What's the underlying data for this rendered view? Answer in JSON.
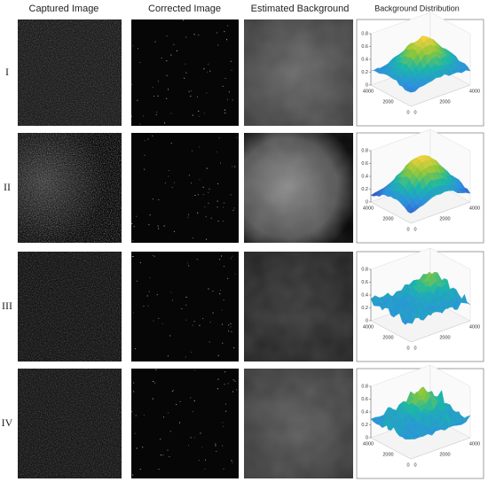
{
  "columns": [
    "Captured Image",
    "Corrected Image",
    "Estimated Background",
    "Background Distribution"
  ],
  "rows": [
    {
      "label": "I",
      "plot": {
        "zticks": [
          0,
          0.2,
          0.4,
          0.6,
          0.8
        ],
        "left_ticks": [
          "4000",
          "2000",
          "0"
        ],
        "right_ticks": [
          "0",
          "2000",
          "4000"
        ]
      }
    },
    {
      "label": "II",
      "plot": {
        "zticks": [
          0,
          0.2,
          0.4,
          0.6,
          0.8
        ],
        "left_ticks": [
          "4000",
          "2000",
          "0"
        ],
        "right_ticks": [
          "0",
          "2000",
          "4000"
        ]
      }
    },
    {
      "label": "III",
      "plot": {
        "zticks": [
          0,
          0.2,
          0.4,
          0.6,
          0.8
        ],
        "left_ticks": [
          "4000",
          "2000",
          "0"
        ],
        "right_ticks": [
          "0",
          "2000",
          "4000"
        ]
      }
    },
    {
      "label": "IV",
      "plot": {
        "zticks": [
          0,
          0.2,
          0.4,
          0.6,
          0.8
        ],
        "left_ticks": [
          "4000",
          "2000",
          "0"
        ],
        "right_ticks": [
          "0",
          "2000",
          "4000"
        ]
      }
    }
  ]
}
